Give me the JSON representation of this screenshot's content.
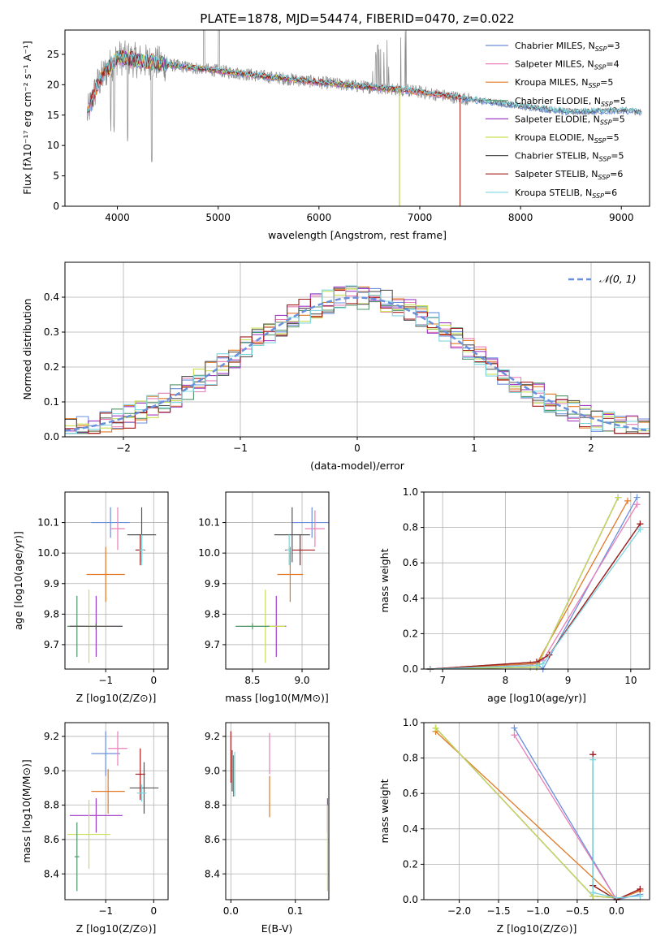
{
  "palette": {
    "chabrier_miles": "#6a8fdb",
    "salpeter_miles": "#e87fb8",
    "kroupa_miles": "#e07a26",
    "chabrier_elodie": "#4f9469",
    "salpeter_elodie": "#a13ec7",
    "kroupa_elodie": "#c8df52",
    "chabrier_stelib": "#555555",
    "salpeter_stelib": "#a41d1d",
    "kroupa_stelib": "#7ed6e0",
    "model_line": "#6a8fdb"
  },
  "chart_data": [
    {
      "id": "spectrum",
      "type": "line",
      "title": "PLATE=1878, MJD=54474, FIBERID=0470, z=0.022",
      "xlabel": "wavelength [Angstrom, rest frame]",
      "ylabel": "Flux [f$_\\lambda$10$^{-17}$ erg cm$^{-2}$ s$^{-1}$ A$^{-1}$]",
      "ylabel_display": "Flux [fλ10⁻¹⁷ erg cm⁻² s⁻¹ A⁻¹]",
      "xlim": [
        3480,
        9280
      ],
      "ylim": [
        0,
        29
      ],
      "xticks": [
        4000,
        5000,
        6000,
        7000,
        8000,
        9000
      ],
      "yticks": [
        0,
        5,
        10,
        15,
        20,
        25
      ],
      "legend_position": "top-right",
      "continuum_x": [
        3700,
        3800,
        3900,
        4000,
        4200,
        4500,
        5000,
        5500,
        6000,
        6500,
        6800,
        7000,
        7200,
        7500,
        8000,
        8500,
        9000,
        9200
      ],
      "continuum_y": [
        15,
        20,
        22.5,
        24.5,
        24,
        23.3,
        22.3,
        21.3,
        20.4,
        19.6,
        19.2,
        18.8,
        18.3,
        17.6,
        16.5,
        15.5,
        15.8,
        15.5
      ],
      "series": [
        {
          "name": "Chabrier MILES, N$_{SSP}$=3",
          "name_display": "Chabrier MILES, NSSP=3",
          "label_base": "Chabrier MILES, N",
          "label_sub": "SSP",
          "label_tail": "=3",
          "color_key": "chabrier_miles",
          "x_range": [
            3700,
            9200
          ]
        },
        {
          "name": "Salpeter MILES, N$_{SSP}$=4",
          "name_display": "Salpeter MILES, NSSP=4",
          "label_base": "Salpeter MILES, N",
          "label_sub": "SSP",
          "label_tail": "=4",
          "color_key": "salpeter_miles",
          "x_range": [
            3700,
            7400
          ]
        },
        {
          "name": "Kroupa MILES, N$_{SSP}$=5",
          "name_display": "Kroupa MILES, NSSP=5",
          "label_base": "Kroupa MILES, N",
          "label_sub": "SSP",
          "label_tail": "=5",
          "color_key": "kroupa_miles",
          "x_range": [
            3700,
            7400
          ]
        },
        {
          "name": "Chabrier ELODIE, N$_{SSP}$=5",
          "name_display": "Chabrier ELODIE, NSSP=5",
          "label_base": "Chabrier ELODIE, N",
          "label_sub": "SSP",
          "label_tail": "=5",
          "color_key": "chabrier_elodie",
          "x_range": [
            3900,
            6800
          ]
        },
        {
          "name": "Salpeter ELODIE, N$_{SSP}$=5",
          "name_display": "Salpeter ELODIE, NSSP=5",
          "label_base": "Salpeter ELODIE, N",
          "label_sub": "SSP",
          "label_tail": "=5",
          "color_key": "salpeter_elodie",
          "x_range": [
            3900,
            6800
          ]
        },
        {
          "name": "Kroupa ELODIE, N$_{SSP}$=5",
          "name_display": "Kroupa ELODIE, NSSP=5",
          "label_base": "Kroupa ELODIE, N",
          "label_sub": "SSP",
          "label_tail": "=5",
          "color_key": "kroupa_elodie",
          "x_range": [
            3900,
            6800
          ]
        },
        {
          "name": "Chabrier STELIB, N$_{SSP}$=5",
          "name_display": "Chabrier STELIB, NSSP=5",
          "label_base": "Chabrier STELIB, N",
          "label_sub": "SSP",
          "label_tail": "=5",
          "color_key": "chabrier_stelib",
          "x_range": [
            3700,
            9200
          ]
        },
        {
          "name": "Salpeter STELIB, N$_{SSP}$=6",
          "name_display": "Salpeter STELIB, NSSP=6",
          "label_base": "Salpeter STELIB, N",
          "label_sub": "SSP",
          "label_tail": "=6",
          "color_key": "salpeter_stelib",
          "x_range": [
            3700,
            7400
          ]
        },
        {
          "name": "Kroupa STELIB, N$_{SSP}$=6",
          "name_display": "Kroupa STELIB, NSSP=6",
          "label_base": "Kroupa STELIB, N",
          "label_sub": "SSP",
          "label_tail": "=6",
          "color_key": "kroupa_stelib",
          "x_range": [
            3700,
            9200
          ]
        }
      ],
      "data_series": {
        "name": "data",
        "color": "#888888"
      }
    },
    {
      "id": "residuals",
      "type": "line",
      "xlabel": "(data-model)/error",
      "ylabel": "Normed distribution",
      "xlim": [
        -2.5,
        2.5
      ],
      "ylim": [
        0,
        0.5
      ],
      "xticks": [
        -2,
        -1,
        0,
        1,
        2
      ],
      "xtick_labels": [
        "−2",
        "−1",
        "0",
        "1",
        "2"
      ],
      "yticks": [
        0.0,
        0.1,
        0.2,
        0.3,
        0.4
      ],
      "ytick_labels": [
        "0.0",
        "0.1",
        "0.2",
        "0.3",
        "0.4"
      ],
      "legend_position": "top-right",
      "reference_curve": {
        "name": "$\\mathcal{N}(0,1)$",
        "name_display": "𝒩(0, 1)",
        "style": "dashed"
      },
      "histogram_bins": 50,
      "bin_width": 0.1
    },
    {
      "id": "age_vs_Z",
      "type": "scatter",
      "xlabel": "Z [log$_{10}$(Z/Z$_\\odot$)]",
      "xlabel_display": "Z [log10(Z/Z⊙)]",
      "ylabel": "age  [log$_{10}$(age/yr)]",
      "ylabel_display": "age  [log10(age/yr)]",
      "xlim": [
        -1.85,
        0.3
      ],
      "ylim": [
        9.62,
        10.2
      ],
      "xticks": [
        -1,
        0
      ],
      "xtick_labels": [
        "−1",
        "0"
      ],
      "yticks": [
        9.7,
        9.8,
        9.9,
        10.0,
        10.1
      ],
      "ytick_labels": [
        "9.7",
        "9.8",
        "9.9",
        "10.0",
        "10.1"
      ],
      "points": [
        {
          "color_key": "chabrier_miles",
          "x": -0.9,
          "y": 10.1,
          "xerr": 0.4,
          "yerr": 0.05
        },
        {
          "color_key": "salpeter_miles",
          "x": -0.75,
          "y": 10.08,
          "xerr": 0.15,
          "yerr": 0.07
        },
        {
          "color_key": "kroupa_miles",
          "x": -1.0,
          "y": 9.93,
          "xerr": 0.4,
          "yerr": 0.09
        },
        {
          "color_key": "chabrier_stelib",
          "x": -0.25,
          "y": 10.06,
          "xerr": 0.3,
          "yerr": 0.09
        },
        {
          "color_key": "salpeter_stelib",
          "x": -0.28,
          "y": 10.01,
          "xerr": 0.1,
          "yerr": 0.05
        },
        {
          "color_key": "kroupa_stelib",
          "x": -0.25,
          "y": 10.01,
          "xerr": 0.05,
          "yerr": 0.05
        },
        {
          "color_key": "salpeter_elodie",
          "x": -1.2,
          "y": 9.76,
          "xerr": 0.55,
          "yerr": 0.1
        },
        {
          "color_key": "kroupa_elodie",
          "x": -1.35,
          "y": 9.76,
          "xerr": 0.45,
          "yerr": 0.12
        },
        {
          "color_key": "chabrier_elodie",
          "x": -1.6,
          "y": 9.76,
          "xerr": 0.2,
          "yerr": 0.1
        },
        {
          "color_key": "chabrier_stelib",
          "x": -1.2,
          "y": 9.76,
          "xerr": 0.55,
          "yerr": 0.01
        }
      ]
    },
    {
      "id": "age_vs_mass",
      "type": "scatter",
      "xlabel": "mass [log$_{10}$(M/M$_\\odot$)]",
      "xlabel_display": "mass [log10(M/M⊙)]",
      "ylabel": "",
      "xlim": [
        8.23,
        9.27
      ],
      "ylim": [
        9.62,
        10.2
      ],
      "xticks": [
        8.5,
        9.0
      ],
      "xtick_labels": [
        "8.5",
        "9.0"
      ],
      "yticks": [
        9.7,
        9.8,
        9.9,
        10.0,
        10.1
      ],
      "ytick_labels": [
        "9.7",
        "9.8",
        "9.9",
        "10.0",
        "10.1"
      ],
      "points": [
        {
          "color_key": "chabrier_miles",
          "x": 9.1,
          "y": 10.1,
          "xerr": 0.2,
          "yerr": 0.05
        },
        {
          "color_key": "salpeter_miles",
          "x": 9.13,
          "y": 10.08,
          "xerr": 0.1,
          "yerr": 0.06
        },
        {
          "color_key": "kroupa_miles",
          "x": 8.88,
          "y": 9.93,
          "xerr": 0.13,
          "yerr": 0.09
        },
        {
          "color_key": "chabrier_stelib",
          "x": 8.9,
          "y": 10.06,
          "xerr": 0.18,
          "yerr": 0.09
        },
        {
          "color_key": "salpeter_stelib",
          "x": 8.98,
          "y": 10.01,
          "xerr": 0.15,
          "yerr": 0.05
        },
        {
          "color_key": "kroupa_stelib",
          "x": 8.87,
          "y": 10.01,
          "xerr": 0.03,
          "yerr": 0.05
        },
        {
          "color_key": "salpeter_elodie",
          "x": 8.74,
          "y": 9.76,
          "xerr": 0.1,
          "yerr": 0.1
        },
        {
          "color_key": "kroupa_elodie",
          "x": 8.63,
          "y": 9.76,
          "xerr": 0.2,
          "yerr": 0.12
        },
        {
          "color_key": "chabrier_elodie",
          "x": 8.5,
          "y": 9.76,
          "xerr": 0.17,
          "yerr": 0.01
        }
      ]
    },
    {
      "id": "massweight_vs_age",
      "type": "line",
      "xlabel": "age  [log$_{10}$(age/yr)]",
      "xlabel_display": "age  [log10(age/yr)]",
      "ylabel": "mass weight",
      "xlim": [
        6.7,
        10.3
      ],
      "ylim": [
        0,
        1
      ],
      "xticks": [
        7,
        8,
        9,
        10
      ],
      "xtick_labels": [
        "7",
        "8",
        "9",
        "10"
      ],
      "yticks": [
        0,
        0.2,
        0.4,
        0.6,
        0.8,
        1.0
      ],
      "ytick_labels": [
        "0.0",
        "0.2",
        "0.4",
        "0.6",
        "0.8",
        "1.0"
      ],
      "series": [
        {
          "color_key": "chabrier_miles",
          "x": [
            6.8,
            8.5,
            8.6,
            10.1
          ],
          "y": [
            0.0,
            0.03,
            0.0,
            0.97
          ]
        },
        {
          "color_key": "salpeter_miles",
          "x": [
            6.8,
            8.4,
            8.6,
            10.1
          ],
          "y": [
            0.0,
            0.02,
            0.05,
            0.93
          ]
        },
        {
          "color_key": "kroupa_miles",
          "x": [
            6.8,
            8.4,
            8.5,
            9.95
          ],
          "y": [
            0.0,
            0.03,
            0.03,
            0.95
          ]
        },
        {
          "color_key": "chabrier_elodie",
          "x": [
            6.8,
            8.4,
            8.5,
            9.8
          ],
          "y": [
            0.0,
            0.01,
            0.01,
            0.97
          ]
        },
        {
          "color_key": "salpeter_elodie",
          "x": [
            6.8,
            8.4,
            8.5,
            9.8
          ],
          "y": [
            0.0,
            0.01,
            0.01,
            0.97
          ]
        },
        {
          "color_key": "kroupa_elodie",
          "x": [
            6.8,
            8.4,
            8.5,
            9.8
          ],
          "y": [
            0.0,
            0.01,
            0.01,
            0.97
          ]
        },
        {
          "color_key": "chabrier_stelib",
          "x": [
            6.8,
            8.5,
            8.7,
            10.15
          ],
          "y": [
            0.0,
            0.04,
            0.08,
            0.82
          ]
        },
        {
          "color_key": "salpeter_stelib",
          "x": [
            6.8,
            8.5,
            8.7,
            10.15
          ],
          "y": [
            0.0,
            0.04,
            0.08,
            0.82
          ]
        },
        {
          "color_key": "kroupa_stelib",
          "x": [
            6.8,
            8.5,
            8.6,
            10.15
          ],
          "y": [
            0.0,
            0.02,
            0.03,
            0.79
          ]
        }
      ]
    },
    {
      "id": "mass_vs_Z",
      "type": "scatter",
      "xlabel": "Z [log$_{10}$(Z/Z$_\\odot$)]",
      "xlabel_display": "Z [log10(Z/Z⊙)]",
      "ylabel": "mass [log$_{10}$(M/M$_\\odot$)]",
      "ylabel_display": "mass [log10(M/M⊙)]",
      "xlim": [
        -1.85,
        0.3
      ],
      "ylim": [
        8.25,
        9.28
      ],
      "xticks": [
        -1,
        0
      ],
      "xtick_labels": [
        "−1",
        "0"
      ],
      "yticks": [
        8.4,
        8.6,
        8.8,
        9.0,
        9.2
      ],
      "ytick_labels": [
        "8.4",
        "8.6",
        "8.8",
        "9.0",
        "9.2"
      ],
      "points": [
        {
          "color_key": "chabrier_miles",
          "x": -1.0,
          "y": 9.1,
          "xerr": 0.3,
          "yerr": 0.13
        },
        {
          "color_key": "salpeter_miles",
          "x": -0.75,
          "y": 9.13,
          "xerr": 0.2,
          "yerr": 0.1
        },
        {
          "color_key": "kroupa_miles",
          "x": -0.95,
          "y": 8.88,
          "xerr": 0.35,
          "yerr": 0.13
        },
        {
          "color_key": "chabrier_stelib",
          "x": -0.2,
          "y": 8.9,
          "xerr": 0.3,
          "yerr": 0.15
        },
        {
          "color_key": "salpeter_stelib",
          "x": -0.28,
          "y": 8.98,
          "xerr": 0.1,
          "yerr": 0.15
        },
        {
          "color_key": "kroupa_stelib",
          "x": -0.25,
          "y": 8.87,
          "xerr": 0.1,
          "yerr": 0.05
        },
        {
          "color_key": "salpeter_elodie",
          "x": -1.2,
          "y": 8.74,
          "xerr": 0.55,
          "yerr": 0.1
        },
        {
          "color_key": "kroupa_elodie",
          "x": -1.35,
          "y": 8.63,
          "xerr": 0.45,
          "yerr": 0.2
        },
        {
          "color_key": "chabrier_elodie",
          "x": -1.6,
          "y": 8.5,
          "xerr": 0.05,
          "yerr": 0.2
        }
      ]
    },
    {
      "id": "mass_vs_ebv",
      "type": "scatter",
      "xlabel": "E(B-V)",
      "ylabel": "",
      "xlim": [
        -0.008,
        0.152
      ],
      "ylim": [
        8.25,
        9.28
      ],
      "xticks": [
        0.0,
        0.1
      ],
      "xtick_labels": [
        "0.0",
        "0.1"
      ],
      "yticks": [
        8.4,
        8.6,
        8.8,
        9.0,
        9.2
      ],
      "ytick_labels": [
        "8.4",
        "8.6",
        "8.8",
        "9.0",
        "9.2"
      ],
      "points": [
        {
          "color_key": "salpeter_stelib",
          "x": 0.0,
          "y": 9.08,
          "xerr": 0.0,
          "yerr": 0.15
        },
        {
          "color_key": "chabrier_stelib",
          "x": 0.002,
          "y": 9.0,
          "xerr": 0.0,
          "yerr": 0.12
        },
        {
          "color_key": "kroupa_stelib",
          "x": 0.006,
          "y": 8.98,
          "xerr": 0.0,
          "yerr": 0.13
        },
        {
          "color_key": "chabrier_elodie",
          "x": 0.004,
          "y": 8.97,
          "xerr": 0.0,
          "yerr": 0.12
        },
        {
          "color_key": "salpeter_miles",
          "x": 0.06,
          "y": 9.1,
          "xerr": 0.0,
          "yerr": 0.12
        },
        {
          "color_key": "kroupa_miles",
          "x": 0.06,
          "y": 8.85,
          "xerr": 0.0,
          "yerr": 0.12
        },
        {
          "color_key": "salpeter_elodie",
          "x": 0.15,
          "y": 8.74,
          "xerr": 0.0,
          "yerr": 0.1
        },
        {
          "color_key": "kroupa_elodie",
          "x": 0.15,
          "y": 8.55,
          "xerr": 0.0,
          "yerr": 0.25
        }
      ]
    },
    {
      "id": "massweight_vs_Z",
      "type": "line",
      "xlabel": "Z [log$_{10}$(Z/Z$_\\odot$)]",
      "xlabel_display": "Z [log10(Z/Z⊙)]",
      "ylabel": "mass weight",
      "xlim": [
        -2.45,
        0.42
      ],
      "ylim": [
        0,
        1
      ],
      "xticks": [
        -2.0,
        -1.5,
        -1.0,
        -0.5,
        0.0
      ],
      "xtick_labels": [
        "−2.0",
        "−1.5",
        "−1.0",
        "−0.5",
        "0.0"
      ],
      "yticks": [
        0,
        0.2,
        0.4,
        0.6,
        0.8,
        1.0
      ],
      "ytick_labels": [
        "0.0",
        "0.2",
        "0.4",
        "0.6",
        "0.8",
        "1.0"
      ],
      "series": [
        {
          "color_key": "chabrier_miles",
          "x": [
            -1.3,
            0.0,
            0.3
          ],
          "y": [
            0.97,
            0.0,
            0.03
          ]
        },
        {
          "color_key": "salpeter_miles",
          "x": [
            -1.3,
            0.0,
            0.3
          ],
          "y": [
            0.93,
            0.0,
            0.05
          ]
        },
        {
          "color_key": "kroupa_miles",
          "x": [
            -2.3,
            0.0,
            0.3
          ],
          "y": [
            0.95,
            0.0,
            0.05
          ]
        },
        {
          "color_key": "chabrier_elodie",
          "x": [
            -2.3,
            -0.3,
            0.0
          ],
          "y": [
            0.97,
            0.02,
            0.01
          ]
        },
        {
          "color_key": "salpeter_elodie",
          "x": [
            -2.3,
            -0.3,
            0.0
          ],
          "y": [
            0.97,
            0.02,
            0.01
          ]
        },
        {
          "color_key": "kroupa_elodie",
          "x": [
            -2.3,
            -0.3,
            0.0
          ],
          "y": [
            0.97,
            0.02,
            0.01
          ]
        },
        {
          "color_key": "chabrier_stelib",
          "x": [
            -0.3,
            -0.3,
            0.0,
            0.3
          ],
          "y": [
            0.82,
            0.08,
            0.0,
            0.06
          ]
        },
        {
          "color_key": "salpeter_stelib",
          "x": [
            -0.3,
            -0.3,
            0.0,
            0.3
          ],
          "y": [
            0.82,
            0.08,
            0.0,
            0.06
          ]
        },
        {
          "color_key": "kroupa_stelib",
          "x": [
            -0.3,
            -0.3,
            0.0,
            0.3
          ],
          "y": [
            0.79,
            0.04,
            0.01,
            0.02
          ]
        }
      ]
    }
  ]
}
